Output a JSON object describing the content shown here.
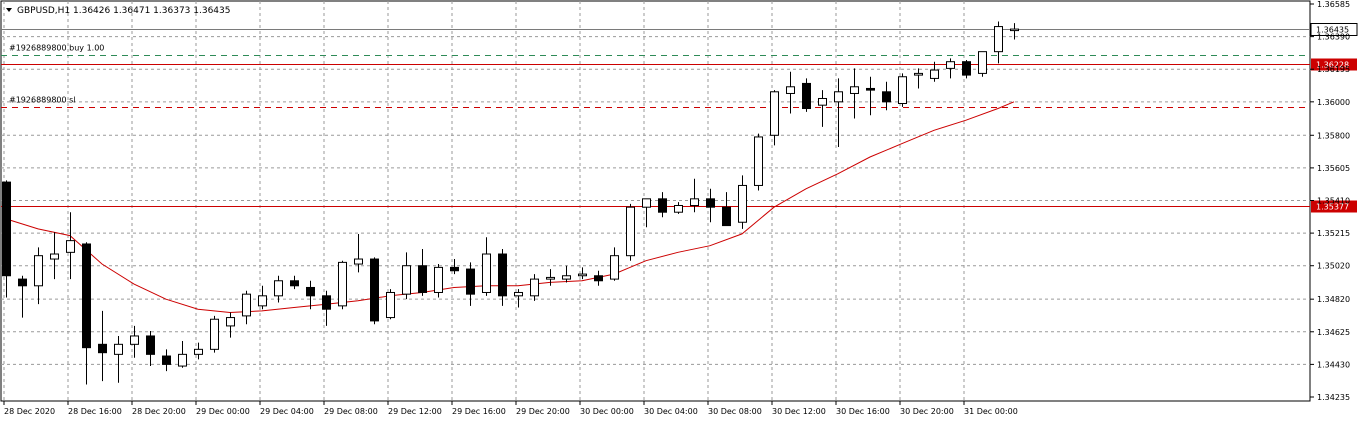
{
  "header": {
    "symbol_info": "GBPUSD,H1  1.36426 1.36471 1.36373 1.36435"
  },
  "chart_data": {
    "type": "candlestick",
    "symbol": "GBPUSD",
    "timeframe": "H1",
    "ylim": [
      1.34235,
      1.36585
    ],
    "grid": true,
    "y_ticks": [
      "1.36585",
      "1.36390",
      "1.36195",
      "1.36000",
      "1.35800",
      "1.35605",
      "1.35410",
      "1.35215",
      "1.35020",
      "1.34820",
      "1.34625",
      "1.34430",
      "1.34235"
    ],
    "x_ticks": [
      "28 Dec 2020",
      "28 Dec 16:00",
      "28 Dec 20:00",
      "29 Dec 00:00",
      "29 Dec 04:00",
      "29 Dec 08:00",
      "29 Dec 12:00",
      "29 Dec 16:00",
      "29 Dec 20:00",
      "30 Dec 00:00",
      "30 Dec 04:00",
      "30 Dec 08:00",
      "30 Dec 12:00",
      "30 Dec 16:00",
      "30 Dec 20:00",
      "31 Dec 00:00"
    ],
    "candles": [
      {
        "o": 1.3552,
        "h": 1.3553,
        "l": 1.3483,
        "c": 1.3496
      },
      {
        "o": 1.3494,
        "h": 1.3496,
        "l": 1.3471,
        "c": 1.349
      },
      {
        "o": 1.349,
        "h": 1.3513,
        "l": 1.3479,
        "c": 1.3508
      },
      {
        "o": 1.3506,
        "h": 1.3522,
        "l": 1.3494,
        "c": 1.3509
      },
      {
        "o": 1.351,
        "h": 1.3534,
        "l": 1.3494,
        "c": 1.3517
      },
      {
        "o": 1.3515,
        "h": 1.3516,
        "l": 1.3431,
        "c": 1.3453
      },
      {
        "o": 1.3455,
        "h": 1.3475,
        "l": 1.3433,
        "c": 1.345
      },
      {
        "o": 1.3449,
        "h": 1.346,
        "l": 1.3432,
        "c": 1.3455
      },
      {
        "o": 1.3455,
        "h": 1.3466,
        "l": 1.3447,
        "c": 1.346
      },
      {
        "o": 1.346,
        "h": 1.3463,
        "l": 1.3442,
        "c": 1.3449
      },
      {
        "o": 1.3448,
        "h": 1.3452,
        "l": 1.3439,
        "c": 1.3443
      },
      {
        "o": 1.3442,
        "h": 1.3457,
        "l": 1.3441,
        "c": 1.3449
      },
      {
        "o": 1.3449,
        "h": 1.3456,
        "l": 1.3446,
        "c": 1.3452
      },
      {
        "o": 1.3452,
        "h": 1.3472,
        "l": 1.345,
        "c": 1.347
      },
      {
        "o": 1.3466,
        "h": 1.3474,
        "l": 1.3459,
        "c": 1.3471
      },
      {
        "o": 1.3472,
        "h": 1.3487,
        "l": 1.3467,
        "c": 1.3485
      },
      {
        "o": 1.3478,
        "h": 1.349,
        "l": 1.3476,
        "c": 1.3484
      },
      {
        "o": 1.3484,
        "h": 1.3496,
        "l": 1.348,
        "c": 1.3493
      },
      {
        "o": 1.3493,
        "h": 1.3496,
        "l": 1.3488,
        "c": 1.349
      },
      {
        "o": 1.3489,
        "h": 1.3493,
        "l": 1.3476,
        "c": 1.3484
      },
      {
        "o": 1.3484,
        "h": 1.3487,
        "l": 1.3466,
        "c": 1.3476
      },
      {
        "o": 1.3478,
        "h": 1.3505,
        "l": 1.3476,
        "c": 1.3504
      },
      {
        "o": 1.3503,
        "h": 1.3521,
        "l": 1.3498,
        "c": 1.3506
      },
      {
        "o": 1.3506,
        "h": 1.3507,
        "l": 1.3467,
        "c": 1.3469
      },
      {
        "o": 1.3471,
        "h": 1.3488,
        "l": 1.347,
        "c": 1.3486
      },
      {
        "o": 1.3485,
        "h": 1.351,
        "l": 1.3482,
        "c": 1.3502
      },
      {
        "o": 1.3502,
        "h": 1.3512,
        "l": 1.3484,
        "c": 1.3486
      },
      {
        "o": 1.3486,
        "h": 1.3503,
        "l": 1.3483,
        "c": 1.3501
      },
      {
        "o": 1.3501,
        "h": 1.3506,
        "l": 1.3497,
        "c": 1.3499
      },
      {
        "o": 1.35,
        "h": 1.3504,
        "l": 1.3478,
        "c": 1.3485
      },
      {
        "o": 1.3486,
        "h": 1.3519,
        "l": 1.3484,
        "c": 1.3509
      },
      {
        "o": 1.3509,
        "h": 1.3512,
        "l": 1.3478,
        "c": 1.3484
      },
      {
        "o": 1.3484,
        "h": 1.3488,
        "l": 1.3477,
        "c": 1.3486
      },
      {
        "o": 1.3484,
        "h": 1.3497,
        "l": 1.3481,
        "c": 1.3494
      },
      {
        "o": 1.3494,
        "h": 1.35,
        "l": 1.349,
        "c": 1.3495
      },
      {
        "o": 1.3494,
        "h": 1.3502,
        "l": 1.3492,
        "c": 1.3496
      },
      {
        "o": 1.3496,
        "h": 1.3501,
        "l": 1.3494,
        "c": 1.3497
      },
      {
        "o": 1.3496,
        "h": 1.3499,
        "l": 1.349,
        "c": 1.3493
      },
      {
        "o": 1.3494,
        "h": 1.3513,
        "l": 1.3493,
        "c": 1.3508
      },
      {
        "o": 1.3508,
        "h": 1.3539,
        "l": 1.3505,
        "c": 1.3537
      },
      {
        "o": 1.3537,
        "h": 1.3542,
        "l": 1.3525,
        "c": 1.3542
      },
      {
        "o": 1.3542,
        "h": 1.3546,
        "l": 1.3531,
        "c": 1.3534
      },
      {
        "o": 1.3534,
        "h": 1.354,
        "l": 1.3533,
        "c": 1.3538
      },
      {
        "o": 1.3538,
        "h": 1.3554,
        "l": 1.3534,
        "c": 1.3542
      },
      {
        "o": 1.3542,
        "h": 1.3548,
        "l": 1.3528,
        "c": 1.3537
      },
      {
        "o": 1.3537,
        "h": 1.3546,
        "l": 1.3526,
        "c": 1.3526
      },
      {
        "o": 1.3528,
        "h": 1.3556,
        "l": 1.3524,
        "c": 1.355
      },
      {
        "o": 1.355,
        "h": 1.3581,
        "l": 1.3547,
        "c": 1.3579
      },
      {
        "o": 1.358,
        "h": 1.3607,
        "l": 1.3574,
        "c": 1.3606
      },
      {
        "o": 1.3605,
        "h": 1.3618,
        "l": 1.3593,
        "c": 1.3609
      },
      {
        "o": 1.3611,
        "h": 1.3614,
        "l": 1.3594,
        "c": 1.3596
      },
      {
        "o": 1.3598,
        "h": 1.3607,
        "l": 1.3585,
        "c": 1.3602
      },
      {
        "o": 1.36,
        "h": 1.3614,
        "l": 1.3573,
        "c": 1.3606
      },
      {
        "o": 1.3605,
        "h": 1.362,
        "l": 1.359,
        "c": 1.3609
      },
      {
        "o": 1.3608,
        "h": 1.3615,
        "l": 1.3592,
        "c": 1.3607
      },
      {
        "o": 1.3606,
        "h": 1.3612,
        "l": 1.3595,
        "c": 1.36
      },
      {
        "o": 1.3599,
        "h": 1.3617,
        "l": 1.3597,
        "c": 1.3615
      },
      {
        "o": 1.3616,
        "h": 1.362,
        "l": 1.3608,
        "c": 1.3617
      },
      {
        "o": 1.3614,
        "h": 1.3624,
        "l": 1.3612,
        "c": 1.3619
      },
      {
        "o": 1.362,
        "h": 1.3626,
        "l": 1.3614,
        "c": 1.3624
      },
      {
        "o": 1.3624,
        "h": 1.3625,
        "l": 1.3614,
        "c": 1.3616
      },
      {
        "o": 1.3617,
        "h": 1.363,
        "l": 1.3615,
        "c": 1.363
      },
      {
        "o": 1.363,
        "h": 1.3648,
        "l": 1.3623,
        "c": 1.3645
      },
      {
        "o": 1.36426,
        "h": 1.36471,
        "l": 1.36373,
        "c": 1.36435
      }
    ],
    "moving_average": [
      {
        "i": 0,
        "v": 1.353
      },
      {
        "i": 2,
        "v": 1.3524
      },
      {
        "i": 4,
        "v": 1.352
      },
      {
        "i": 6,
        "v": 1.3503
      },
      {
        "i": 8,
        "v": 1.3491
      },
      {
        "i": 10,
        "v": 1.3482
      },
      {
        "i": 12,
        "v": 1.3476
      },
      {
        "i": 14,
        "v": 1.3474
      },
      {
        "i": 16,
        "v": 1.3475
      },
      {
        "i": 18,
        "v": 1.3477
      },
      {
        "i": 20,
        "v": 1.3479
      },
      {
        "i": 22,
        "v": 1.3481
      },
      {
        "i": 24,
        "v": 1.3484
      },
      {
        "i": 26,
        "v": 1.3486
      },
      {
        "i": 28,
        "v": 1.3489
      },
      {
        "i": 30,
        "v": 1.349
      },
      {
        "i": 32,
        "v": 1.349
      },
      {
        "i": 34,
        "v": 1.3492
      },
      {
        "i": 36,
        "v": 1.3493
      },
      {
        "i": 38,
        "v": 1.3497
      },
      {
        "i": 40,
        "v": 1.3505
      },
      {
        "i": 42,
        "v": 1.351
      },
      {
        "i": 44,
        "v": 1.3514
      },
      {
        "i": 46,
        "v": 1.3521
      },
      {
        "i": 48,
        "v": 1.3537
      },
      {
        "i": 50,
        "v": 1.3548
      },
      {
        "i": 52,
        "v": 1.3557
      },
      {
        "i": 54,
        "v": 1.3567
      },
      {
        "i": 56,
        "v": 1.3575
      },
      {
        "i": 58,
        "v": 1.3583
      },
      {
        "i": 60,
        "v": 1.3589
      },
      {
        "i": 62,
        "v": 1.3596
      },
      {
        "i": 63,
        "v": 1.36
      }
    ],
    "levels": [
      {
        "price": 1.36228,
        "label": "1.36228",
        "color": "#cc0000",
        "style": "solid",
        "text": ""
      },
      {
        "price": 1.35377,
        "label": "1.35377",
        "color": "#cc0000",
        "style": "solid",
        "text": ""
      },
      {
        "price": 1.3628,
        "label": "",
        "color": "#2e8b57",
        "style": "dashed",
        "text": "#1926889800 buy 1.00"
      },
      {
        "price": 1.3597,
        "label": "",
        "color": "#cc0000",
        "style": "dashed",
        "text": "#1926889800 sl"
      }
    ],
    "current_price": {
      "price": 1.36435,
      "label": "1.36435"
    },
    "colors": {
      "bull": "#ffffff",
      "bear": "#000000",
      "ma": "#cc0000",
      "grid": "#9a9a9a"
    }
  }
}
